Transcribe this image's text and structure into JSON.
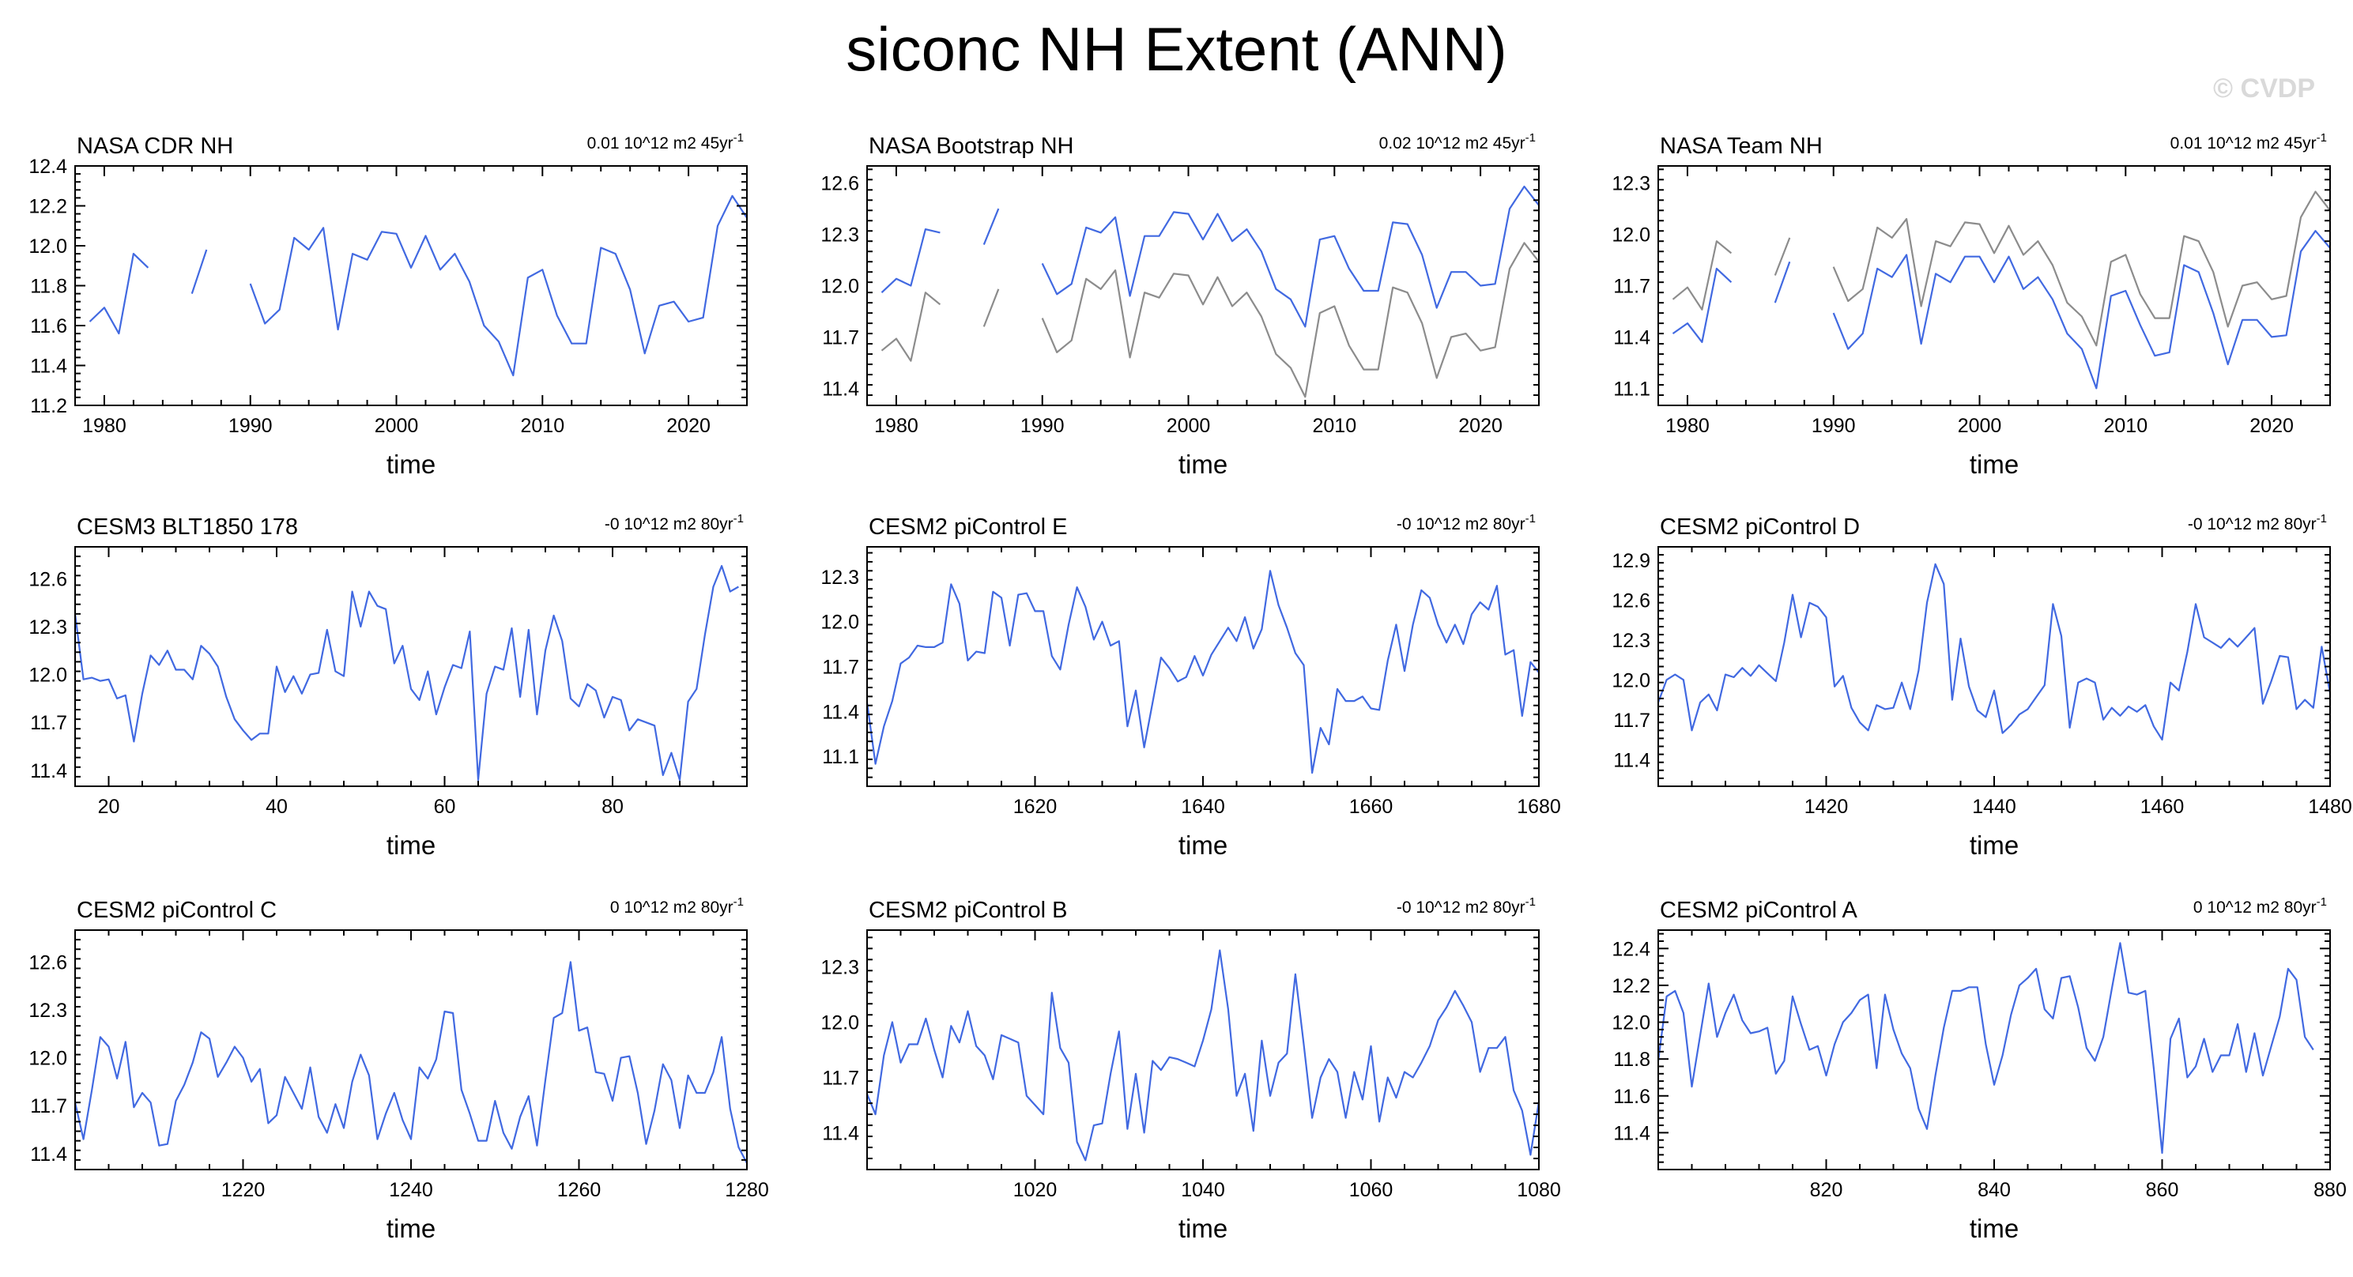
{
  "title": "siconc NH Extent (ANN)",
  "watermark": "© CVDP",
  "colors": {
    "model": "#4169e1",
    "obs_gray": "#8c8c8c",
    "axis": "#000000"
  },
  "chart_data": [
    {
      "type": "line",
      "title": "NASA CDR NH",
      "trend_label": "0.01 10^12 m2 45yr",
      "trend_sup": "-1",
      "xlabel": "time",
      "xlim": [
        1978,
        2024
      ],
      "ylim": [
        11.2,
        12.4
      ],
      "xticks": [
        1980,
        1990,
        2000,
        2010,
        2020
      ],
      "yticks": [
        "11.2",
        "11.4",
        "11.6",
        "11.8",
        "12.0",
        "12.2",
        "12.4"
      ],
      "series": [
        {
          "color": "#4169e1",
          "x_start": 1979,
          "values": [
            11.62,
            11.69,
            11.56,
            11.96,
            11.89,
            null,
            null,
            11.76,
            11.98,
            null,
            null,
            11.81,
            11.61,
            11.68,
            12.04,
            11.98,
            12.09,
            11.58,
            11.96,
            11.93,
            12.07,
            12.06,
            11.89,
            12.05,
            11.88,
            11.96,
            11.82,
            11.6,
            11.52,
            11.35,
            11.84,
            11.88,
            11.65,
            11.51,
            11.51,
            11.99,
            11.96,
            11.78,
            11.46,
            11.7,
            11.72,
            11.62,
            11.64,
            12.1,
            12.25,
            12.14
          ]
        }
      ]
    },
    {
      "type": "line",
      "title": "NASA Bootstrap NH",
      "trend_label": "0.02 10^12 m2 45yr",
      "trend_sup": "-1",
      "xlabel": "time",
      "xlim": [
        1978,
        2024
      ],
      "ylim": [
        11.3,
        12.7
      ],
      "xticks": [
        1980,
        1990,
        2000,
        2010,
        2020
      ],
      "yticks": [
        "11.4",
        "11.7",
        "12.0",
        "12.3",
        "12.6"
      ],
      "series": [
        {
          "color": "#8c8c8c",
          "x_start": 1979,
          "values": [
            11.62,
            11.69,
            11.56,
            11.96,
            11.89,
            null,
            null,
            11.76,
            11.98,
            null,
            null,
            11.81,
            11.61,
            11.68,
            12.04,
            11.98,
            12.09,
            11.58,
            11.96,
            11.93,
            12.07,
            12.06,
            11.89,
            12.05,
            11.88,
            11.96,
            11.82,
            11.6,
            11.52,
            11.35,
            11.84,
            11.88,
            11.65,
            11.51,
            11.51,
            11.99,
            11.96,
            11.78,
            11.46,
            11.7,
            11.72,
            11.62,
            11.64,
            12.1,
            12.25,
            12.14
          ]
        },
        {
          "color": "#4169e1",
          "x_start": 1979,
          "values": [
            11.96,
            12.04,
            12.0,
            12.33,
            12.31,
            null,
            null,
            12.24,
            12.45,
            null,
            null,
            12.13,
            11.95,
            12.01,
            12.34,
            12.31,
            12.4,
            11.94,
            12.29,
            12.29,
            12.43,
            12.42,
            12.27,
            12.42,
            12.26,
            12.33,
            12.2,
            11.98,
            11.92,
            11.76,
            12.27,
            12.29,
            12.1,
            11.97,
            11.97,
            12.37,
            12.36,
            12.18,
            11.87,
            12.08,
            12.08,
            12.0,
            12.01,
            12.45,
            12.58,
            12.47
          ]
        }
      ]
    },
    {
      "type": "line",
      "title": "NASA Team NH",
      "trend_label": "0.01 10^12 m2 45yr",
      "trend_sup": "-1",
      "xlabel": "time",
      "xlim": [
        1978,
        2024
      ],
      "ylim": [
        11.0,
        12.4
      ],
      "xticks": [
        1980,
        1990,
        2000,
        2010,
        2020
      ],
      "yticks": [
        "11.1",
        "11.4",
        "11.7",
        "12.0",
        "12.3"
      ],
      "series": [
        {
          "color": "#8c8c8c",
          "x_start": 1979,
          "values": [
            11.62,
            11.69,
            11.56,
            11.96,
            11.89,
            null,
            null,
            11.76,
            11.98,
            null,
            null,
            11.81,
            11.61,
            11.68,
            12.04,
            11.98,
            12.09,
            11.58,
            11.96,
            11.93,
            12.07,
            12.06,
            11.89,
            12.05,
            11.88,
            11.96,
            11.82,
            11.6,
            11.52,
            11.35,
            11.84,
            11.88,
            11.65,
            11.51,
            11.51,
            11.99,
            11.96,
            11.78,
            11.46,
            11.7,
            11.72,
            11.62,
            11.64,
            12.1,
            12.25,
            12.14
          ]
        },
        {
          "color": "#4169e1",
          "x_start": 1979,
          "values": [
            11.42,
            11.48,
            11.37,
            11.8,
            11.72,
            null,
            null,
            11.6,
            11.84,
            null,
            null,
            11.54,
            11.33,
            11.42,
            11.8,
            11.75,
            11.88,
            11.36,
            11.77,
            11.72,
            11.87,
            11.87,
            11.72,
            11.87,
            11.68,
            11.75,
            11.62,
            11.42,
            11.33,
            11.1,
            11.64,
            11.67,
            11.47,
            11.29,
            11.31,
            11.82,
            11.78,
            11.54,
            11.24,
            11.5,
            11.5,
            11.4,
            11.41,
            11.9,
            12.02,
            11.92
          ]
        }
      ]
    },
    {
      "type": "line",
      "title": "CESM3 BLT1850 178",
      "trend_label": "-0 10^12 m2 80yr",
      "trend_sup": "-1",
      "xlabel": "time",
      "xlim": [
        16,
        96
      ],
      "ylim": [
        11.3,
        12.8
      ],
      "xticks": [
        20,
        40,
        60,
        80
      ],
      "yticks": [
        "11.4",
        "11.7",
        "12.0",
        "12.3",
        "12.6"
      ],
      "series": [
        {
          "color": "#4169e1",
          "x_start": 16,
          "values": [
            12.38,
            11.97,
            11.98,
            11.96,
            11.97,
            11.85,
            11.87,
            11.58,
            11.88,
            12.12,
            12.06,
            12.15,
            12.03,
            12.03,
            11.97,
            12.18,
            12.13,
            12.05,
            11.86,
            11.72,
            11.65,
            11.59,
            11.63,
            11.63,
            12.05,
            11.89,
            11.99,
            11.88,
            12.0,
            12.01,
            12.28,
            12.02,
            11.99,
            12.52,
            12.3,
            12.52,
            12.43,
            12.41,
            12.07,
            12.18,
            11.91,
            11.84,
            12.02,
            11.75,
            11.92,
            12.06,
            12.04,
            12.27,
            11.34,
            11.88,
            12.05,
            12.03,
            12.29,
            11.86,
            12.28,
            11.75,
            12.15,
            12.37,
            12.21,
            11.85,
            11.8,
            11.94,
            11.9,
            11.73,
            11.86,
            11.84,
            11.65,
            11.72,
            11.7,
            11.68,
            11.37,
            11.51,
            11.34,
            11.83,
            11.91,
            12.25,
            12.55,
            12.68,
            12.52,
            12.55
          ]
        }
      ]
    },
    {
      "type": "line",
      "title": "CESM2 piControl E",
      "trend_label": "-0 10^12 m2 80yr",
      "trend_sup": "-1",
      "xlabel": "time",
      "xlim": [
        1600,
        1680
      ],
      "ylim": [
        10.9,
        12.5
      ],
      "xticks": [
        1620,
        1640,
        1660,
        1680
      ],
      "yticks": [
        "11.1",
        "11.4",
        "11.7",
        "12.0",
        "12.3"
      ],
      "series": [
        {
          "color": "#4169e1",
          "x_start": 1600,
          "values": [
            11.46,
            11.05,
            11.3,
            11.47,
            11.72,
            11.76,
            11.84,
            11.83,
            11.83,
            11.86,
            12.25,
            12.12,
            11.74,
            11.8,
            11.79,
            12.2,
            12.16,
            11.84,
            12.18,
            12.19,
            12.07,
            12.07,
            11.77,
            11.68,
            11.98,
            12.23,
            12.1,
            11.88,
            12.0,
            11.84,
            11.87,
            11.3,
            11.54,
            11.16,
            11.46,
            11.76,
            11.69,
            11.6,
            11.63,
            11.77,
            11.64,
            11.78,
            11.87,
            11.96,
            11.87,
            12.03,
            11.82,
            11.95,
            12.34,
            12.11,
            11.96,
            11.79,
            11.71,
            10.99,
            11.29,
            11.18,
            11.55,
            11.47,
            11.47,
            11.5,
            11.42,
            11.41,
            11.74,
            11.98,
            11.67,
            11.98,
            12.21,
            12.16,
            11.98,
            11.86,
            11.98,
            11.85,
            12.05,
            12.13,
            12.08,
            12.24,
            11.78,
            11.81,
            11.37,
            11.73,
            11.66
          ]
        }
      ]
    },
    {
      "type": "line",
      "title": "CESM2 piControl D",
      "trend_label": "-0 10^12 m2 80yr",
      "trend_sup": "-1",
      "xlabel": "time",
      "xlim": [
        1400,
        1480
      ],
      "ylim": [
        11.2,
        13.0
      ],
      "xticks": [
        1420,
        1440,
        1460,
        1480
      ],
      "yticks": [
        "11.4",
        "11.7",
        "12.0",
        "12.3",
        "12.6",
        "12.9"
      ],
      "series": [
        {
          "color": "#4169e1",
          "x_start": 1400,
          "values": [
            11.83,
            12.0,
            12.04,
            12.0,
            11.62,
            11.83,
            11.89,
            11.77,
            12.04,
            12.02,
            12.09,
            12.03,
            12.11,
            12.05,
            11.99,
            12.28,
            12.64,
            12.32,
            12.58,
            12.55,
            12.47,
            11.95,
            12.03,
            11.79,
            11.68,
            11.62,
            11.81,
            11.78,
            11.79,
            11.98,
            11.78,
            12.07,
            12.58,
            12.87,
            12.72,
            11.85,
            12.31,
            11.95,
            11.77,
            11.72,
            11.92,
            11.6,
            11.66,
            11.74,
            11.78,
            11.87,
            11.96,
            12.57,
            12.33,
            11.64,
            11.98,
            12.01,
            11.98,
            11.7,
            11.79,
            11.73,
            11.8,
            11.76,
            11.81,
            11.65,
            11.55,
            11.98,
            11.92,
            12.21,
            12.57,
            12.32,
            12.28,
            12.24,
            12.31,
            12.25,
            12.32,
            12.39,
            11.82,
            11.99,
            12.18,
            12.17,
            11.78,
            11.85,
            11.79,
            12.25,
            11.9
          ]
        }
      ]
    },
    {
      "type": "line",
      "title": "CESM2 piControl C",
      "trend_label": "0 10^12 m2 80yr",
      "trend_sup": "-1",
      "xlabel": "time",
      "xlim": [
        1200,
        1280
      ],
      "ylim": [
        11.3,
        12.8
      ],
      "xticks": [
        1220,
        1240,
        1260,
        1280
      ],
      "yticks": [
        "11.4",
        "11.7",
        "12.0",
        "12.3",
        "12.6"
      ],
      "series": [
        {
          "color": "#4169e1",
          "x_start": 1200,
          "values": [
            11.72,
            11.49,
            11.8,
            12.13,
            12.07,
            11.87,
            12.1,
            11.69,
            11.78,
            11.72,
            11.45,
            11.46,
            11.73,
            11.83,
            11.97,
            12.16,
            12.12,
            11.88,
            11.97,
            12.07,
            12.0,
            11.85,
            11.93,
            11.59,
            11.64,
            11.88,
            11.78,
            11.68,
            11.94,
            11.63,
            11.53,
            11.71,
            11.56,
            11.85,
            12.02,
            11.89,
            11.49,
            11.65,
            11.78,
            11.61,
            11.49,
            11.94,
            11.87,
            11.99,
            12.29,
            12.28,
            11.8,
            11.65,
            11.48,
            11.48,
            11.73,
            11.53,
            11.43,
            11.63,
            11.76,
            11.45,
            11.86,
            12.25,
            12.28,
            12.6,
            12.17,
            12.19,
            11.91,
            11.9,
            11.73,
            12.0,
            12.01,
            11.78,
            11.46,
            11.67,
            11.96,
            11.86,
            11.56,
            11.89,
            11.78,
            11.78,
            11.91,
            12.13,
            11.68,
            11.44,
            11.34
          ]
        }
      ]
    },
    {
      "type": "line",
      "title": "CESM2 piControl B",
      "trend_label": "-0 10^12 m2 80yr",
      "trend_sup": "-1",
      "xlabel": "time",
      "xlim": [
        1000,
        1080
      ],
      "ylim": [
        11.2,
        12.5
      ],
      "xticks": [
        1020,
        1040,
        1060,
        1080
      ],
      "yticks": [
        "11.4",
        "11.7",
        "12.0",
        "12.3"
      ],
      "series": [
        {
          "color": "#4169e1",
          "x_start": 1000,
          "values": [
            11.61,
            11.5,
            11.82,
            12.0,
            11.78,
            11.88,
            11.88,
            12.02,
            11.85,
            11.7,
            11.98,
            11.89,
            12.06,
            11.87,
            11.82,
            11.69,
            11.93,
            11.91,
            11.89,
            11.6,
            11.55,
            11.5,
            12.16,
            11.86,
            11.78,
            11.35,
            11.25,
            11.44,
            11.45,
            11.72,
            11.95,
            11.42,
            11.72,
            11.4,
            11.79,
            11.74,
            11.81,
            11.8,
            11.78,
            11.76,
            11.9,
            12.07,
            12.39,
            12.07,
            11.6,
            11.72,
            11.41,
            11.9,
            11.6,
            11.78,
            11.83,
            12.26,
            11.88,
            11.48,
            11.7,
            11.8,
            11.73,
            11.48,
            11.73,
            11.58,
            11.87,
            11.46,
            11.7,
            11.59,
            11.73,
            11.7,
            11.78,
            11.87,
            12.01,
            12.08,
            12.17,
            12.09,
            12.0,
            11.73,
            11.86,
            11.86,
            11.92,
            11.63,
            11.52,
            11.28,
            11.57
          ]
        }
      ]
    },
    {
      "type": "line",
      "title": "CESM2 piControl A",
      "trend_label": "0 10^12 m2 80yr",
      "trend_sup": "-1",
      "xlabel": "time",
      "xlim": [
        800,
        880
      ],
      "ylim": [
        11.2,
        12.5
      ],
      "xticks": [
        820,
        840,
        860,
        880
      ],
      "yticks": [
        "11.4",
        "11.6",
        "11.8",
        "12.0",
        "12.2",
        "12.4"
      ],
      "series": [
        {
          "color": "#4169e1",
          "x_start": 800,
          "values": [
            11.79,
            12.14,
            12.17,
            12.05,
            11.65,
            11.93,
            12.21,
            11.92,
            12.05,
            12.15,
            12.01,
            11.94,
            11.95,
            11.97,
            11.72,
            11.79,
            12.14,
            11.99,
            11.85,
            11.87,
            11.71,
            11.88,
            12.0,
            12.05,
            12.12,
            12.15,
            11.75,
            12.15,
            11.96,
            11.83,
            11.75,
            11.53,
            11.42,
            11.71,
            11.97,
            12.17,
            12.17,
            12.19,
            12.19,
            11.88,
            11.66,
            11.82,
            12.04,
            12.2,
            12.24,
            12.29,
            12.07,
            12.02,
            12.24,
            12.25,
            12.08,
            11.86,
            11.79,
            11.92,
            12.18,
            12.43,
            12.16,
            12.15,
            12.17,
            11.75,
            11.29,
            11.91,
            12.02,
            11.7,
            11.76,
            11.91,
            11.73,
            11.82,
            11.82,
            11.99,
            11.73,
            11.94,
            11.71,
            11.87,
            12.03,
            12.29,
            12.23,
            11.92,
            11.85
          ]
        }
      ]
    }
  ]
}
